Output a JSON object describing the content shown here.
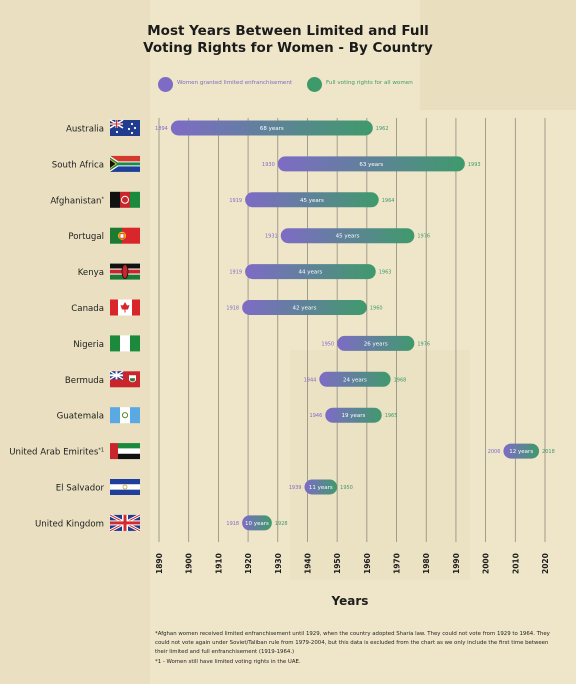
{
  "colors": {
    "limited": "#7e6bc6",
    "full": "#3f9a6b",
    "background": "#efe6c9",
    "grid": "#8f8a7d"
  },
  "title_lines": [
    "Most Years Between Limited and Full",
    "Voting Rights for Women - By Country"
  ],
  "legend": {
    "limited": "Women granted limited enfranchisement",
    "full": "Full voting rights for all women"
  },
  "footnotes": [
    "*Afghan women received limited enfranchisement until 1929, when the country adopted Sharia law. They could not vote from 1929 to 1964. They could not vote again under Soviet/Taliban rule from 1979-2004, but this data is excluded from the chart as we only include the first time between their limited and full enfranchisement (1919-1964.)",
    "*1 - Women still have limited voting rights in the UAE."
  ],
  "chart_data": {
    "type": "bar",
    "orientation": "horizontal",
    "subtype": "range",
    "xlabel": "Years",
    "xlim": [
      1890,
      2020
    ],
    "xticks": [
      1890,
      1900,
      1910,
      1920,
      1930,
      1940,
      1950,
      1960,
      1970,
      1980,
      1990,
      2000,
      2010,
      2020
    ],
    "grid": "vertical",
    "legend_position": "top",
    "series": [
      {
        "name": "Women granted limited enfranchisement",
        "role": "start"
      },
      {
        "name": "Full voting rights for all women",
        "role": "end"
      }
    ],
    "rows": [
      {
        "country": "Australia",
        "flag": "flag-australia",
        "start": 1894,
        "end": 1962,
        "label": "68 years"
      },
      {
        "country": "South Africa",
        "flag": "flag-south-africa",
        "start": 1930,
        "end": 1993,
        "label": "63 years"
      },
      {
        "country": "Afghanistan",
        "suffix": "*",
        "flag": "flag-afghanistan",
        "start": 1919,
        "end": 1964,
        "label": "45 years"
      },
      {
        "country": "Portugal",
        "flag": "flag-portugal",
        "start": 1931,
        "end": 1976,
        "label": "45 years"
      },
      {
        "country": "Kenya",
        "flag": "flag-kenya",
        "start": 1919,
        "end": 1963,
        "label": "44 years"
      },
      {
        "country": "Canada",
        "flag": "flag-canada",
        "start": 1918,
        "end": 1960,
        "label": "42 years"
      },
      {
        "country": "Nigeria",
        "flag": "flag-nigeria",
        "start": 1950,
        "end": 1976,
        "label": "26 years"
      },
      {
        "country": "Bermuda",
        "flag": "flag-bermuda",
        "start": 1944,
        "end": 1968,
        "label": "24 years"
      },
      {
        "country": "Guatemala",
        "flag": "flag-guatemala",
        "start": 1946,
        "end": 1965,
        "label": "19 years"
      },
      {
        "country": "United Arab Emirites",
        "suffix": "*1",
        "flag": "flag-uae",
        "start": 2006,
        "end": 2018,
        "label": "12 years"
      },
      {
        "country": "El Salvador",
        "flag": "flag-el-salvador",
        "start": 1939,
        "end": 1950,
        "label": "11 years"
      },
      {
        "country": "United Kingdom",
        "flag": "flag-united-kingdom",
        "start": 1918,
        "end": 1928,
        "label": "10 years"
      }
    ]
  }
}
